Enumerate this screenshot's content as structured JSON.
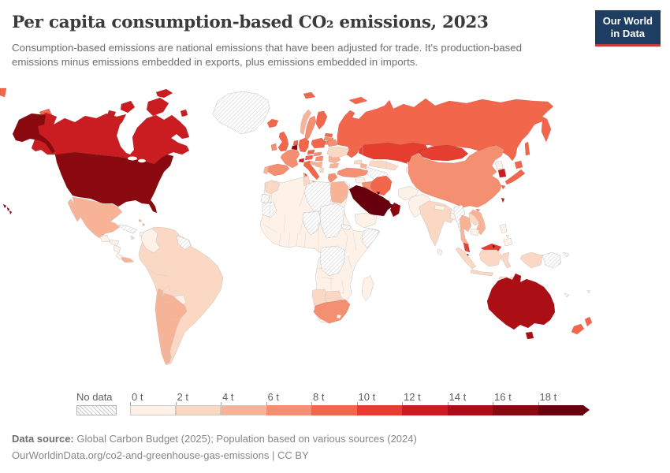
{
  "header": {
    "title": "Per capita consumption-based CO₂ emissions, 2023",
    "subtitle": "Consumption-based emissions are national emissions that have been adjusted for trade. It's production-based emissions minus emissions embedded in exports, plus emissions embedded in imports."
  },
  "logo": {
    "line1": "Our World",
    "line2": "in Data",
    "bg": "#1d3d63",
    "accent": "#cc3b33"
  },
  "legend": {
    "no_data_label": "No data",
    "tick_labels": [
      "0 t",
      "2 t",
      "4 t",
      "6 t",
      "8 t",
      "10 t",
      "12 t",
      "14 t",
      "16 t",
      "18 t"
    ]
  },
  "footer": {
    "source_label": "Data source:",
    "source_text": "Global Carbon Budget (2025); Population based on various sources (2024)",
    "link_line": "OurWorldinData.org/co2-and-greenhouse-gas-emissions | CC BY"
  },
  "chart_data": {
    "type": "heatmap",
    "map_type": "world-choropleth",
    "title": "Per capita consumption-based CO₂ emissions, 2023",
    "unit": "t",
    "year": 2023,
    "bins": [
      0,
      2,
      4,
      6,
      8,
      10,
      12,
      14,
      16,
      18
    ],
    "bin_colors": [
      "#fef1e8",
      "#fbd8c3",
      "#f8b396",
      "#f58f71",
      "#f2664c",
      "#e53d30",
      "#ca1d21",
      "#ab0e15",
      "#8a0911",
      "#67000d"
    ],
    "no_data_color": "hatch",
    "countries": {
      "United States": 17.5,
      "Canada": 13.5,
      "Mexico": 4.5,
      "Guatemala": 1.2,
      "Belize": 1.7,
      "Honduras": 1.1,
      "Nicaragua": 1.0,
      "Costa Rica": 1.8,
      "Panama": 5.0,
      "Haiti": 0.5,
      "Dominican Republic": 2.5,
      "Jamaica": 2.8,
      "Bahamas": 5.2,
      "Trinidad and Tobago": 17.0,
      "Colombia": 1.8,
      "Venezuela": 2.8,
      "Ecuador": 2.4,
      "Peru": 2.1,
      "Brazil": 2.6,
      "Bolivia": 2.3,
      "Paraguay": 1.3,
      "Chile": 4.6,
      "Argentina": 4.7,
      "Uruguay": 2.4,
      "Iceland": 9.0,
      "Ireland": 7.8,
      "United Kingdom": 8.9,
      "Norway": 5.5,
      "Sweden": 6.5,
      "Finland": 9.0,
      "Denmark": 7.0,
      "Germany": 9.2,
      "Netherlands": 9.5,
      "Belgium": 17.0,
      "France": 6.5,
      "Switzerland": 13.0,
      "Austria": 9.5,
      "Czechia": 9.3,
      "Slovakia": 7.5,
      "Poland": 8.5,
      "Spain": 6.2,
      "Portugal": 5.5,
      "Italy": 8.2,
      "Croatia": 5.5,
      "Serbia": 5.5,
      "Albania": 3.5,
      "Greece": 7.5,
      "Hungary": 6.5,
      "Romania": 4.5,
      "Bulgaria": 5.5,
      "Ukraine": 3.0,
      "Belarus": 6.5,
      "Estonia": 8.5,
      "Latvia": 6.0,
      "Lithuania": 7.5,
      "Russia": 9.5,
      "Kazakhstan": 11.5,
      "Mongolia": 11.0,
      "Uzbekistan": 3.0,
      "Kyrgyzstan": 2.5,
      "Tajikistan": 1.5,
      "Georgia": 3.5,
      "Azerbaijan": 4.0,
      "Turkey": 6.5,
      "Syria": 1.2,
      "Israel": 8.0,
      "Jordan": 2.2,
      "Iraq": 7.5,
      "Iran": 9.0,
      "Saudi Arabia": 18.5,
      "Kuwait": 19.0,
      "Qatar": 19.0,
      "United Arab Emirates": 19.0,
      "Oman": 17.0,
      "Yemen": 0.9,
      "Afghanistan": 0.6,
      "Pakistan": 1.1,
      "India": 2.1,
      "Nepal": 1.3,
      "Bangladesh": 1.0,
      "Sri Lanka": 1.1,
      "Thailand": 4.5,
      "Laos": 3.5,
      "Vietnam": 5.0,
      "Cambodia": 1.5,
      "Malaysia": 11.0,
      "Singapore": 19.0,
      "Brunei": 19.0,
      "Indonesia": 2.8,
      "Philippines": 1.5,
      "China": 7.5,
      "North Korea": 1.5,
      "South Korea": 13.5,
      "Japan": 9.0,
      "Taiwan": 13.0,
      "Morocco": 2.2,
      "Algeria": 1.9,
      "Tunisia": 2.8,
      "Egypt": 4.1,
      "Mali": 0.4,
      "Niger": 0.4,
      "Ethiopia": 0.4,
      "Nigeria": 0.8,
      "Ghana": 0.9,
      "Senegal": 1.0,
      "Namibia": 2.5,
      "Botswana": 3.0,
      "South Africa": 6.5,
      "Lesotho": 1.5,
      "Madagascar": 0.2,
      "Africa (other)": 0.5,
      "Australia": 15.0,
      "New Zealand": 9.0,
      "Fiji": 1.5
    },
    "no_data": [
      "Greenland",
      "Cuba",
      "Guyana",
      "Western Sahara",
      "Mauritania",
      "Libya",
      "Chad",
      "Sudan",
      "Eritrea",
      "Somalia",
      "DR Congo",
      "Turkmenistan",
      "Myanmar",
      "Papua New Guinea",
      "New Caledonia"
    ]
  }
}
